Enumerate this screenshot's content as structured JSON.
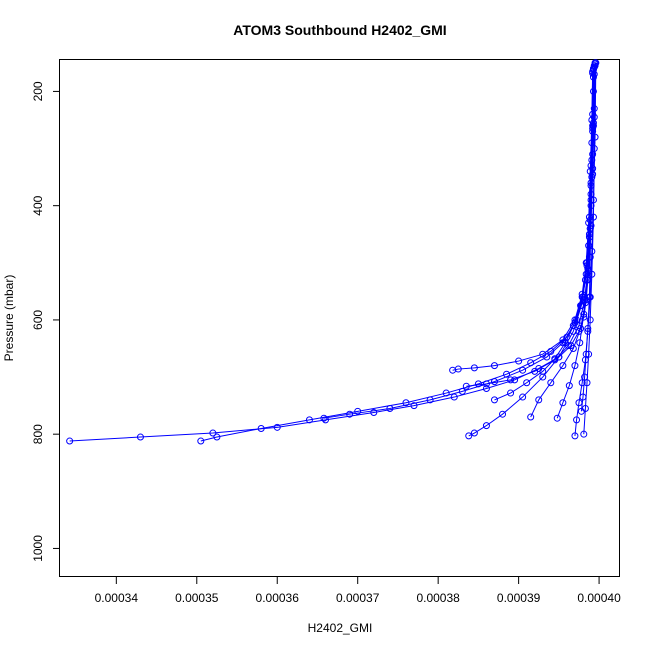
{
  "chart_data": {
    "type": "line",
    "title": "ATOM3 Southbound H2402_GMI",
    "xlabel": "H2402_GMI",
    "ylabel": "Pressure (mbar)",
    "xlim": [
      0.000333,
      0.0004026
    ],
    "ylim": [
      1050,
      145
    ],
    "y_inverted": true,
    "x_ticks": [
      0.00034,
      0.00035,
      0.00036,
      0.00037,
      0.00038,
      0.00039,
      0.0004
    ],
    "x_tick_labels": [
      "0.00034",
      "0.00035",
      "0.00036",
      "0.00037",
      "0.00038",
      "0.00039",
      "0.00040"
    ],
    "y_ticks": [
      200,
      400,
      600,
      800,
      1000
    ],
    "y_tick_labels": [
      "200",
      "400",
      "600",
      "800",
      "1000"
    ],
    "grid": false,
    "legend": "none",
    "marker": "open-circle",
    "series_color": "#0000ff",
    "series": [
      {
        "x": [
          0.0003994,
          0.0003993,
          0.0003992,
          0.0003991,
          0.000399,
          0.0003989,
          0.0003988,
          0.0003986,
          0.0003984,
          0.0003981,
          0.0003975,
          0.0003965,
          0.000395,
          0.0003925,
          0.0003895,
          0.000386,
          0.000382,
          0.000377,
          0.000372,
          0.000366,
          0.00036,
          0.000352,
          0.000343,
          0.0003342
        ],
        "y": [
          155,
          200,
          260,
          320,
          380,
          440,
          490,
          530,
          565,
          595,
          620,
          645,
          665,
          685,
          705,
          720,
          735,
          750,
          762,
          775,
          788,
          798,
          805,
          812
        ]
      },
      {
        "x": [
          0.0003993,
          0.0003992,
          0.000399,
          0.0003988,
          0.0003985,
          0.000398,
          0.0003972,
          0.000396,
          0.000394,
          0.0003915,
          0.0003885,
          0.000385,
          0.000381,
          0.000376,
          0.00037,
          0.000364,
          0.000358,
          0.0003525,
          0.0003505
        ],
        "y": [
          160,
          240,
          330,
          420,
          500,
          560,
          600,
          630,
          655,
          675,
          695,
          712,
          728,
          745,
          760,
          775,
          790,
          805,
          812
        ]
      },
      {
        "x": [
          0.0003995,
          0.0003994,
          0.0003992,
          0.000399,
          0.0003987,
          0.0003983,
          0.0003977,
          0.0003968,
          0.0003955,
          0.0003935,
          0.0003905,
          0.000387,
          0.000383,
          0.000379,
          0.000374,
          0.000369,
          0.0003658
        ],
        "y": [
          150,
          230,
          310,
          390,
          470,
          530,
          575,
          610,
          640,
          665,
          688,
          708,
          725,
          740,
          755,
          765,
          772
        ]
      },
      {
        "x": [
          0.0003992,
          0.0003991,
          0.0003989,
          0.0003987,
          0.0003984,
          0.0003979,
          0.000397,
          0.0003955,
          0.000393,
          0.00039,
          0.000387,
          0.0003845,
          0.0003825,
          0.0003818
        ],
        "y": [
          165,
          250,
          340,
          430,
          500,
          555,
          600,
          635,
          660,
          672,
          680,
          684,
          686,
          688
        ]
      },
      {
        "x": [
          0.0003994,
          0.0003993,
          0.0003991,
          0.0003989,
          0.0003986,
          0.0003982,
          0.0003975,
          0.0003962,
          0.0003945,
          0.000392,
          0.000389,
          0.000386,
          0.0003835
        ],
        "y": [
          170,
          260,
          350,
          440,
          510,
          565,
          610,
          645,
          670,
          690,
          705,
          712,
          716
        ]
      },
      {
        "x": [
          0.0003993,
          0.0003992,
          0.000399,
          0.0003988,
          0.0003984,
          0.0003978,
          0.0003968,
          0.000395,
          0.000393,
          0.0003905,
          0.000388,
          0.000386,
          0.0003845,
          0.0003838
        ],
        "y": [
          175,
          270,
          360,
          450,
          520,
          575,
          620,
          665,
          700,
          735,
          765,
          785,
          798,
          803
        ]
      },
      {
        "x": [
          0.0003995,
          0.0003994,
          0.0003992,
          0.0003989,
          0.0003985,
          0.0003979,
          0.000397,
          0.0003958,
          0.0003945,
          0.000393,
          0.000391,
          0.000389,
          0.000387
        ],
        "y": [
          155,
          245,
          335,
          425,
          505,
          560,
          605,
          640,
          668,
          690,
          710,
          728,
          740
        ]
      },
      {
        "x": [
          0.0003996,
          0.0003995,
          0.0003993,
          0.0003991,
          0.0003989,
          0.0003986,
          0.0003983,
          0.0003979,
          0.0003975,
          0.0003972,
          0.000397
        ],
        "y": [
          150,
          280,
          390,
          480,
          560,
          620,
          670,
          710,
          745,
          775,
          803
        ]
      },
      {
        "x": [
          0.0003994,
          0.0003993,
          0.0003992,
          0.000399,
          0.0003987,
          0.0003983,
          0.0003977,
          0.0003968,
          0.0003955,
          0.000394,
          0.0003925,
          0.0003915
        ],
        "y": [
          158,
          255,
          345,
          435,
          515,
          570,
          615,
          650,
          680,
          710,
          740,
          770
        ]
      },
      {
        "x": [
          0.0003993,
          0.0003992,
          0.000399,
          0.0003988,
          0.0003985,
          0.0003981,
          0.0003976,
          0.000397,
          0.0003963,
          0.0003955,
          0.0003948
        ],
        "y": [
          162,
          265,
          365,
          455,
          530,
          590,
          640,
          680,
          715,
          745,
          772
        ]
      },
      {
        "x": [
          0.0003995,
          0.0003994,
          0.0003993,
          0.0003991,
          0.0003989,
          0.0003987,
          0.0003985,
          0.0003983,
          0.0003981
        ],
        "y": [
          152,
          300,
          420,
          520,
          600,
          660,
          710,
          755,
          800
        ]
      },
      {
        "x": [
          0.0003992,
          0.0003991,
          0.000399,
          0.0003989,
          0.0003988,
          0.0003986,
          0.0003984,
          0.0003982,
          0.000398,
          0.0003978
        ],
        "y": [
          168,
          290,
          400,
          490,
          560,
          615,
          660,
          700,
          735,
          760
        ]
      }
    ]
  }
}
